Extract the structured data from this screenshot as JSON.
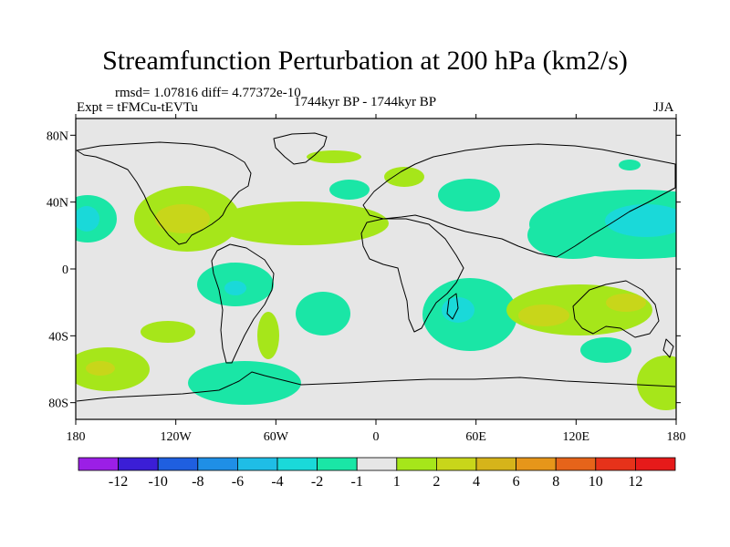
{
  "title": "Streamfunction Perturbation at 200 hPa (km2/s)",
  "stats": "rmsd= 1.07816 diff= 4.77372e-10",
  "experiment": "Expt = tFMCu-tEVTu",
  "period": "1744kyr BP - 1744kyr BP",
  "season": "JJA",
  "axes": {
    "x_ticks": [
      "180",
      "120W",
      "60W",
      "0",
      "60E",
      "120E",
      "180"
    ],
    "y_ticks": [
      "80N",
      "40N",
      "0",
      "40S",
      "80S"
    ]
  },
  "colorbar": {
    "colors": [
      "#9b1fe6",
      "#3b1ed6",
      "#1f5fe0",
      "#1f8fe6",
      "#1fbde6",
      "#1ad9d9",
      "#1ae6a6",
      "#e6e6e6",
      "#a6e61a",
      "#c8d61a",
      "#d6b41a",
      "#e6961a",
      "#e6641a",
      "#e6321a",
      "#e61a1a"
    ],
    "labels": [
      "-12",
      "-10",
      "-8",
      "-6",
      "-4",
      "-2",
      "-1",
      "1",
      "2",
      "4",
      "6",
      "8",
      "10",
      "12"
    ]
  },
  "map_colors": {
    "background": "#e6e6e6",
    "neg1": "#1ae6a6",
    "neg2": "#1ad9d9",
    "pos1": "#a6e61a",
    "pos2": "#c8d61a"
  }
}
